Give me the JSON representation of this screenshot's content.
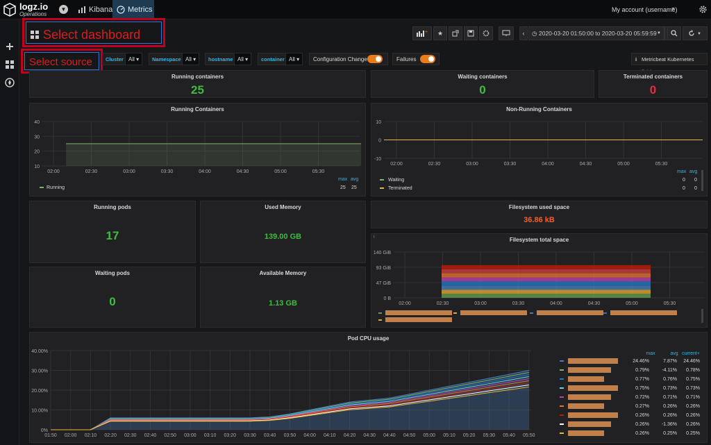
{
  "topbar": {
    "logo": "logz.io",
    "logo_sub": "Operations",
    "tabs": [
      {
        "label": "Kibana"
      },
      {
        "label": "Metrics"
      }
    ],
    "account": "My account (username)"
  },
  "dashboard": {
    "select_label": "Select dashboard",
    "time_range": "2020-03-20 01:50:00 to 2020-03-20 05:59:59"
  },
  "variables": {
    "select_source": "Select source",
    "items": [
      {
        "label": "Cluster",
        "value": "All"
      },
      {
        "label": "Namespace",
        "value": "All"
      },
      {
        "label": "hostname",
        "value": "All"
      },
      {
        "label": "container",
        "value": "All"
      }
    ],
    "toggles": [
      {
        "label": "Configuration Change",
        "on": true
      },
      {
        "label": "Failures",
        "on": true
      }
    ],
    "link": "Metricbeat Kubernetes fields"
  },
  "panels": {
    "running_containers": {
      "title": "Running containers",
      "value": "25",
      "color": "#3fbd3f"
    },
    "waiting_containers": {
      "title": "Waiting containers",
      "value": "0",
      "color": "#3fbd3f"
    },
    "terminated_containers": {
      "title": "Terminated containers",
      "value": "0",
      "color": "#e02f44"
    },
    "running_pods": {
      "title": "Running pods",
      "value": "17"
    },
    "used_memory": {
      "title": "Used Memory",
      "value": "139.00 GB"
    },
    "waiting_pods": {
      "title": "Waiting pods",
      "value": "0"
    },
    "available_memory": {
      "title": "Available Memory",
      "value": "1.13 GB"
    },
    "fs_used": {
      "title": "Filesystem used space",
      "value": "36.86 kB"
    }
  },
  "chart_data": [
    {
      "type": "area",
      "title": "Running Containers",
      "x": [
        "02:00",
        "02:30",
        "03:00",
        "03:30",
        "04:00",
        "04:30",
        "05:00",
        "05:30"
      ],
      "y_ticks": [
        "40",
        "30",
        "20",
        "10"
      ],
      "ylim": [
        10,
        40
      ],
      "series": [
        {
          "name": "Running",
          "values": [
            25,
            25,
            25,
            25,
            25,
            25,
            25,
            25
          ],
          "max": "25",
          "avg": "25",
          "color": "#7eb26d"
        }
      ],
      "legend_headers": [
        "max",
        "avg"
      ]
    },
    {
      "type": "line",
      "title": "Non-Running Containers",
      "x": [
        "02:00",
        "02:30",
        "03:00",
        "03:30",
        "04:00",
        "04:30",
        "05:00",
        "05:30"
      ],
      "y_ticks": [
        "10",
        "0",
        "-10"
      ],
      "ylim": [
        -10,
        10
      ],
      "series": [
        {
          "name": "Waiting",
          "values": [
            0,
            0,
            0,
            0,
            0,
            0,
            0,
            0
          ],
          "max": "0",
          "avg": "0",
          "color": "#7eb26d"
        },
        {
          "name": "Terminated",
          "values": [
            0,
            0,
            0,
            0,
            0,
            0,
            0,
            0
          ],
          "max": "0",
          "avg": "0",
          "color": "#eab839"
        }
      ],
      "legend_headers": [
        "max",
        "avg"
      ]
    },
    {
      "type": "area",
      "title": "Filesystem total space",
      "x": [
        "02:00",
        "02:30",
        "03:00",
        "03:30",
        "04:00",
        "04:30",
        "05:00",
        "05:30"
      ],
      "y_ticks": [
        "140 GiB",
        "93 GiB",
        "47 GiB",
        "0 B"
      ],
      "ylim": [
        0,
        140
      ],
      "stack_colors": [
        "#629e51",
        "#e5a632",
        "#447ebc",
        "#1f78c1",
        "#ba43a9",
        "#e0752d",
        "#cc3f3f",
        "#bf1b00"
      ],
      "series_start": "02:30",
      "series_end": "05:10",
      "total": 100
    },
    {
      "type": "area",
      "title": "Pod CPU usage",
      "x": [
        "01:50",
        "02:00",
        "02:10",
        "02:20",
        "02:30",
        "02:40",
        "02:50",
        "03:00",
        "03:10",
        "03:20",
        "03:30",
        "03:40",
        "03:50",
        "04:00",
        "04:10",
        "04:20",
        "04:30",
        "04:40",
        "04:50",
        "05:00",
        "05:10",
        "05:20",
        "05:30",
        "05:40",
        "05:50"
      ],
      "y_ticks": [
        "40.00%",
        "30.00%",
        "20.00%",
        "10.00%",
        "0%"
      ],
      "ylim": [
        0,
        40
      ],
      "total_curve": [
        0,
        0,
        0,
        6,
        6,
        6,
        6,
        6,
        6,
        6,
        6,
        6.5,
        8,
        10,
        12,
        14,
        15,
        16,
        18,
        20,
        22,
        24,
        26,
        28,
        30
      ],
      "legend_headers": [
        "max",
        "avg",
        "current+"
      ],
      "series": [
        {
          "max": "24.46%",
          "avg": "7.87%",
          "current": "24.46%",
          "color": "#447ebc"
        },
        {
          "max": "0.79%",
          "avg": "-4.11%",
          "current": "0.78%",
          "color": "#7eb26d"
        },
        {
          "max": "0.77%",
          "avg": "0.76%",
          "current": "0.75%",
          "color": "#1f78c1"
        },
        {
          "max": "0.75%",
          "avg": "0.73%",
          "current": "0.73%",
          "color": "#6ed0e0"
        },
        {
          "max": "0.72%",
          "avg": "0.71%",
          "current": "0.71%",
          "color": "#ba43a9"
        },
        {
          "max": "0.27%",
          "avg": "0.26%",
          "current": "0.26%",
          "color": "#e0752d"
        },
        {
          "max": "0.26%",
          "avg": "0.26%",
          "current": "0.26%",
          "color": "#bf1b00"
        },
        {
          "max": "0.26%",
          "avg": "-1.36%",
          "current": "0.26%",
          "color": "#ffffff"
        },
        {
          "max": "0.26%",
          "avg": "0.25%",
          "current": "0.25%",
          "color": "#eab839"
        }
      ]
    }
  ]
}
